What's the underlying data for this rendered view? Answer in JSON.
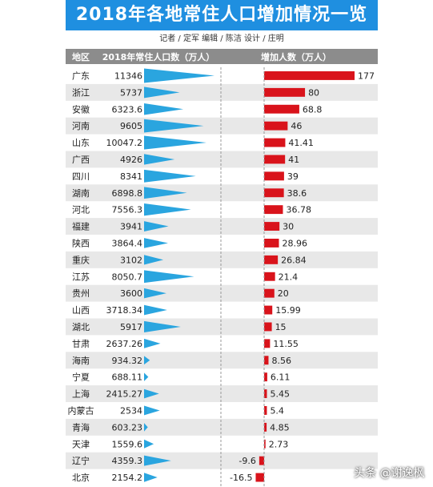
{
  "title": "2018年各地常住人口增加情况一览",
  "credits": "记者 / 定军  编辑 / 陈洁  设计 / 庄明",
  "watermark": "头条 @谢逸枫",
  "colors": {
    "title_bg": "#1f8fe0",
    "header_bg": "#8c8c8c",
    "stripe": "#e8e8e8",
    "pop_triangle": "#2aa5df",
    "increase_bar": "#d9131b"
  },
  "chart_data": {
    "type": "bar",
    "title": "2018年各地常住人口增加情况一览",
    "columns": [
      "地区",
      "2018年常住人口数（万人）",
      "增加人数（万人）"
    ],
    "categories": [
      "广东",
      "浙江",
      "安徽",
      "河南",
      "山东",
      "广西",
      "四川",
      "湖南",
      "河北",
      "福建",
      "陕西",
      "重庆",
      "江苏",
      "贵州",
      "山西",
      "湖北",
      "甘肃",
      "海南",
      "宁夏",
      "上海",
      "内蒙古",
      "青海",
      "天津",
      "辽宁",
      "北京"
    ],
    "population_labels": [
      "11346",
      "5737",
      "6323.6",
      "9605",
      "10047.2",
      "4926",
      "8341",
      "6898.8",
      "7556.3",
      "3941",
      "3864.4",
      "3102",
      "8050.7",
      "3600",
      "3718.34",
      "5917",
      "2637.26",
      "934.32",
      "688.11",
      "2415.27",
      "2534",
      "603.23",
      "1559.6",
      "4359.3",
      "2154.2"
    ],
    "population": [
      11346,
      5737,
      6323.6,
      9605,
      10047.2,
      4926,
      8341,
      6898.8,
      7556.3,
      3941,
      3864.4,
      3102,
      8050.7,
      3600,
      3718.34,
      5917,
      2637.26,
      934.32,
      688.11,
      2415.27,
      2534,
      603.23,
      1559.6,
      4359.3,
      2154.2
    ],
    "increase_labels": [
      "177",
      "80",
      "68.8",
      "46",
      "41.41",
      "41",
      "39",
      "38.6",
      "36.78",
      "30",
      "28.96",
      "26.84",
      "21.4",
      "20",
      "15.99",
      "15",
      "11.55",
      "8.56",
      "6.11",
      "5.45",
      "5.4",
      "4.85",
      "2.73",
      "-9.6",
      "-16.5"
    ],
    "increase": [
      177,
      80,
      68.8,
      46,
      41.41,
      41,
      39,
      38.6,
      36.78,
      30,
      28.96,
      26.84,
      21.4,
      20,
      15.99,
      15,
      11.55,
      8.56,
      6.11,
      5.45,
      5.4,
      4.85,
      2.73,
      -9.6,
      -16.5
    ]
  }
}
